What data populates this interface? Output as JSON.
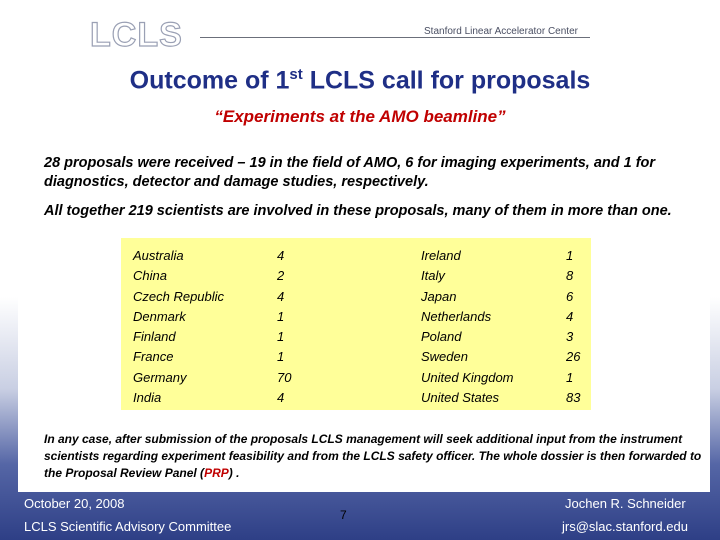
{
  "header": {
    "logo_text": "LCLS",
    "organization": "Stanford Linear Accelerator Center"
  },
  "slide": {
    "title_main": "Outcome of 1",
    "title_sup": "st",
    "title_rest": " LCLS call for proposals",
    "subtitle": "“Experiments at the AMO beamline”",
    "para1": "28 proposals were received – 19 in the field of AMO, 6 for imaging experiments, and 1 for diagnostics, detector and damage studies, respectively.",
    "para2": "All together 219 scientists are involved in these proposals, many of them in more than one.",
    "para3_a": "In any case, after submission of the proposals LCLS management will seek additional input from the instrument scientists regarding experiment feasibility and from the LCLS safety officer. The whole dossier is then forwarded to the Proposal Review Panel (",
    "para3_prp": "PRP",
    "para3_b": ") ."
  },
  "countries_left": [
    {
      "name": "Australia",
      "count": "4"
    },
    {
      "name": "China",
      "count": "2"
    },
    {
      "name": "Czech Republic",
      "count": "4"
    },
    {
      "name": "Denmark",
      "count": "1"
    },
    {
      "name": "Finland",
      "count": "1"
    },
    {
      "name": "France",
      "count": "1"
    },
    {
      "name": "Germany",
      "count": "70"
    },
    {
      "name": "India",
      "count": "4"
    }
  ],
  "countries_right": [
    {
      "name": "Ireland",
      "count": "1"
    },
    {
      "name": "Italy",
      "count": "8"
    },
    {
      "name": "Japan",
      "count": "6"
    },
    {
      "name": "Netherlands",
      "count": "4"
    },
    {
      "name": "Poland",
      "count": "3"
    },
    {
      "name": "Sweden",
      "count": "26"
    },
    {
      "name": "United Kingdom",
      "count": "1"
    },
    {
      "name": "United States",
      "count": "83"
    }
  ],
  "footer": {
    "date": "October 20, 2008",
    "committee": "LCLS Scientific Advisory Committee",
    "page": "7",
    "presenter": "Jochen R. Schneider",
    "email": "jrs@slac.stanford.edu"
  },
  "colors": {
    "title": "#1f2f86",
    "subtitle": "#c00000",
    "table_bg": "#ffff99"
  }
}
